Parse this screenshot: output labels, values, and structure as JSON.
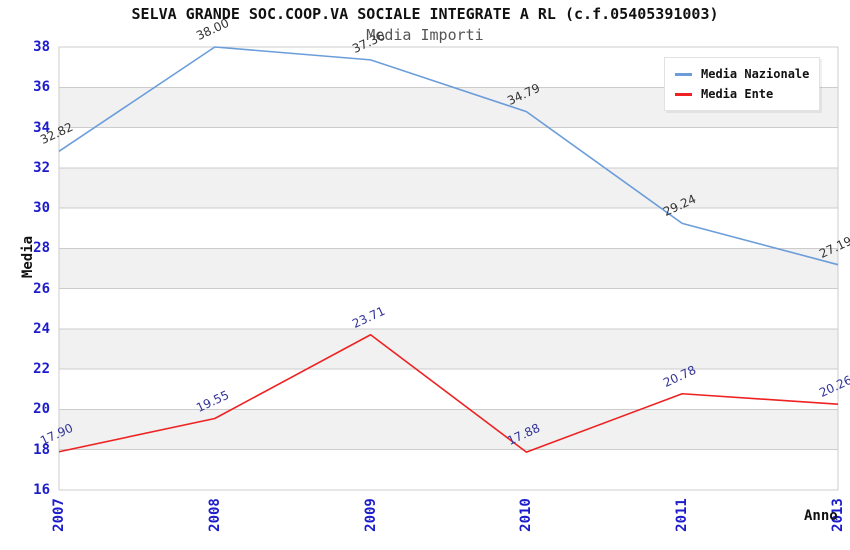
{
  "chart_data": {
    "type": "line",
    "title": "SELVA GRANDE SOC.COOP.VA SOCIALE INTEGRATE A RL (c.f.05405391003)",
    "subtitle": "Media Importi",
    "xlabel": "Anno",
    "ylabel": "Media",
    "categories": [
      "2007",
      "2008",
      "2009",
      "2010",
      "2011",
      "2013"
    ],
    "series": [
      {
        "name": "Media Nazionale",
        "color": "#6b9dda",
        "label_color": "#333333",
        "values": [
          32.82,
          38.0,
          37.36,
          34.79,
          29.24,
          27.19
        ]
      },
      {
        "name": "Media Ente",
        "color": "#ee2222",
        "label_color": "#333399",
        "values": [
          17.9,
          19.55,
          23.71,
          17.88,
          20.78,
          20.26
        ]
      }
    ],
    "ylim": [
      16,
      38
    ],
    "yticks": [
      16,
      18,
      20,
      22,
      24,
      26,
      28,
      30,
      32,
      34,
      36,
      38
    ],
    "grid": true,
    "legend_position": "top-right",
    "styles": {
      "tick_color": "#1c1ccc",
      "grid_color": "#cccccc",
      "plot_border_color": "#cccccc",
      "band_colors": [
        "#ffffff",
        "#f1f1f1"
      ],
      "background": "#ffffff"
    }
  }
}
